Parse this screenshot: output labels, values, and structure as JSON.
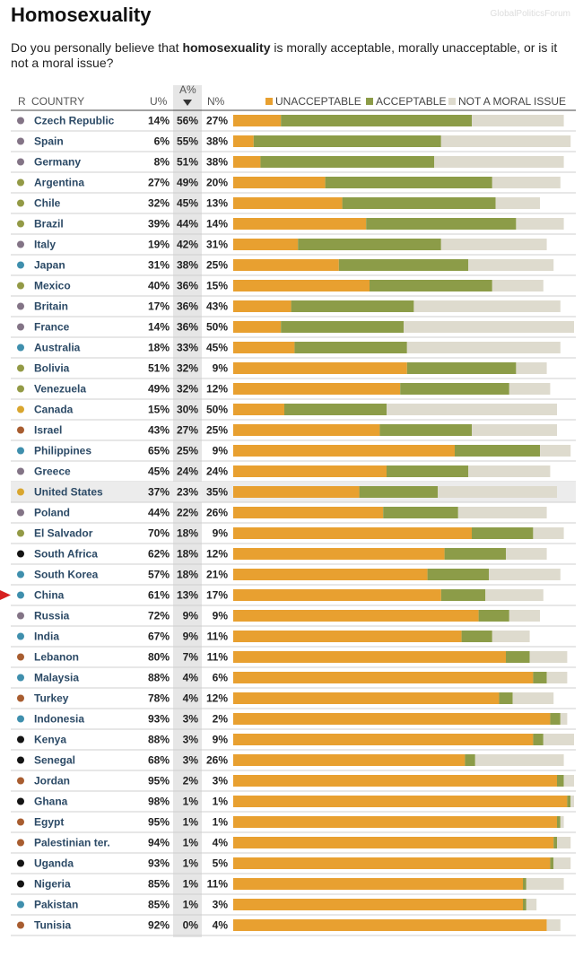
{
  "title": "Homosexuality",
  "subtitle": {
    "before": "Do you personally believe that ",
    "keyword": "homosexuality",
    "after": " is morally acceptable, morally unacceptable, or is it not a moral issue?"
  },
  "watermark": "GlobalPoliticsForum",
  "columns": {
    "rank": "R",
    "country": "COUNTRY",
    "unacceptable": "U%",
    "acceptable": "A%",
    "sort_icon": "sort-descending-triangle",
    "no_moral": "N%"
  },
  "colors": {
    "unacceptable": "#e8a030",
    "acceptable": "#8c9c48",
    "no_moral": "#dedbce",
    "highlight_row": "#ececec",
    "acceptable_column_bg": "#e6e6e6",
    "country_text": "#2c4a66",
    "pointer": "#d62020"
  },
  "region_colors": {
    "europe": "#837486",
    "latin_america": "#939a46",
    "asia_pacific": "#3f8fad",
    "north_america": "#d9a62f",
    "middle_east": "#a85d30",
    "africa": "#141414"
  },
  "highlighted_country": "United States",
  "pointer_country": "China",
  "chart_data": {
    "type": "bar",
    "stacked": true,
    "orientation": "horizontal",
    "title": "Homosexuality",
    "legend": [
      "UNACCEPTABLE",
      "ACCEPTABLE",
      "NOT A MORAL ISSUE"
    ],
    "legend_position": "top-right",
    "sorted_by": "A%",
    "rows": [
      {
        "country": "Czech Republic",
        "region": "europe",
        "u": 14,
        "a": 56,
        "n": 27
      },
      {
        "country": "Spain",
        "region": "europe",
        "u": 6,
        "a": 55,
        "n": 38
      },
      {
        "country": "Germany",
        "region": "europe",
        "u": 8,
        "a": 51,
        "n": 38
      },
      {
        "country": "Argentina",
        "region": "latin_america",
        "u": 27,
        "a": 49,
        "n": 20
      },
      {
        "country": "Chile",
        "region": "latin_america",
        "u": 32,
        "a": 45,
        "n": 13
      },
      {
        "country": "Brazil",
        "region": "latin_america",
        "u": 39,
        "a": 44,
        "n": 14
      },
      {
        "country": "Italy",
        "region": "europe",
        "u": 19,
        "a": 42,
        "n": 31
      },
      {
        "country": "Japan",
        "region": "asia_pacific",
        "u": 31,
        "a": 38,
        "n": 25
      },
      {
        "country": "Mexico",
        "region": "latin_america",
        "u": 40,
        "a": 36,
        "n": 15
      },
      {
        "country": "Britain",
        "region": "europe",
        "u": 17,
        "a": 36,
        "n": 43
      },
      {
        "country": "France",
        "region": "europe",
        "u": 14,
        "a": 36,
        "n": 50
      },
      {
        "country": "Australia",
        "region": "asia_pacific",
        "u": 18,
        "a": 33,
        "n": 45
      },
      {
        "country": "Bolivia",
        "region": "latin_america",
        "u": 51,
        "a": 32,
        "n": 9
      },
      {
        "country": "Venezuela",
        "region": "latin_america",
        "u": 49,
        "a": 32,
        "n": 12
      },
      {
        "country": "Canada",
        "region": "north_america",
        "u": 15,
        "a": 30,
        "n": 50
      },
      {
        "country": "Israel",
        "region": "middle_east",
        "u": 43,
        "a": 27,
        "n": 25
      },
      {
        "country": "Philippines",
        "region": "asia_pacific",
        "u": 65,
        "a": 25,
        "n": 9
      },
      {
        "country": "Greece",
        "region": "europe",
        "u": 45,
        "a": 24,
        "n": 24
      },
      {
        "country": "United States",
        "region": "north_america",
        "u": 37,
        "a": 23,
        "n": 35
      },
      {
        "country": "Poland",
        "region": "europe",
        "u": 44,
        "a": 22,
        "n": 26
      },
      {
        "country": "El Salvador",
        "region": "latin_america",
        "u": 70,
        "a": 18,
        "n": 9
      },
      {
        "country": "South Africa",
        "region": "africa",
        "u": 62,
        "a": 18,
        "n": 12
      },
      {
        "country": "South Korea",
        "region": "asia_pacific",
        "u": 57,
        "a": 18,
        "n": 21
      },
      {
        "country": "China",
        "region": "asia_pacific",
        "u": 61,
        "a": 13,
        "n": 17
      },
      {
        "country": "Russia",
        "region": "europe",
        "u": 72,
        "a": 9,
        "n": 9
      },
      {
        "country": "India",
        "region": "asia_pacific",
        "u": 67,
        "a": 9,
        "n": 11
      },
      {
        "country": "Lebanon",
        "region": "middle_east",
        "u": 80,
        "a": 7,
        "n": 11
      },
      {
        "country": "Malaysia",
        "region": "asia_pacific",
        "u": 88,
        "a": 4,
        "n": 6
      },
      {
        "country": "Turkey",
        "region": "middle_east",
        "u": 78,
        "a": 4,
        "n": 12
      },
      {
        "country": "Indonesia",
        "region": "asia_pacific",
        "u": 93,
        "a": 3,
        "n": 2
      },
      {
        "country": "Kenya",
        "region": "africa",
        "u": 88,
        "a": 3,
        "n": 9
      },
      {
        "country": "Senegal",
        "region": "africa",
        "u": 68,
        "a": 3,
        "n": 26
      },
      {
        "country": "Jordan",
        "region": "middle_east",
        "u": 95,
        "a": 2,
        "n": 3
      },
      {
        "country": "Ghana",
        "region": "africa",
        "u": 98,
        "a": 1,
        "n": 1
      },
      {
        "country": "Egypt",
        "region": "middle_east",
        "u": 95,
        "a": 1,
        "n": 1
      },
      {
        "country": "Palestinian ter.",
        "region": "middle_east",
        "u": 94,
        "a": 1,
        "n": 4
      },
      {
        "country": "Uganda",
        "region": "africa",
        "u": 93,
        "a": 1,
        "n": 5
      },
      {
        "country": "Nigeria",
        "region": "africa",
        "u": 85,
        "a": 1,
        "n": 11
      },
      {
        "country": "Pakistan",
        "region": "asia_pacific",
        "u": 85,
        "a": 1,
        "n": 3
      },
      {
        "country": "Tunisia",
        "region": "middle_east",
        "u": 92,
        "a": 0,
        "n": 4
      }
    ]
  }
}
